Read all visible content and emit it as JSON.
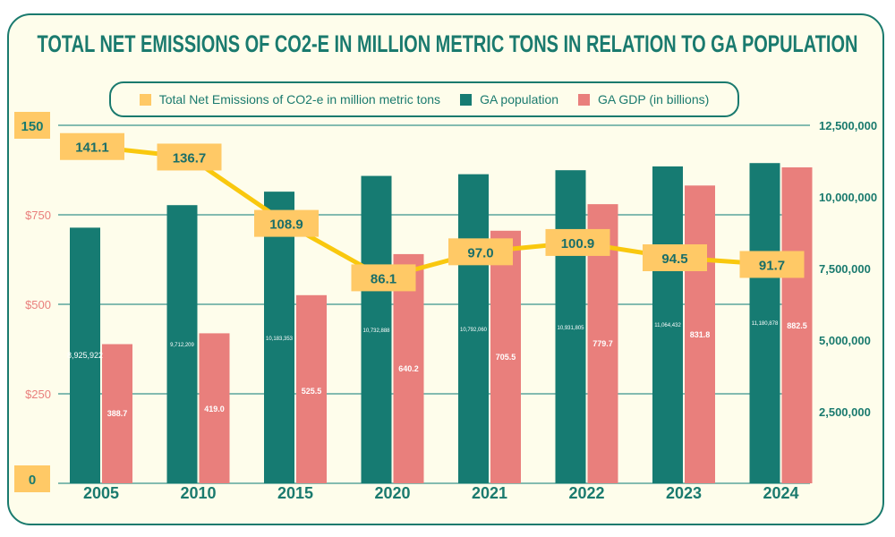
{
  "chart_data": {
    "type": "bar+line",
    "title": "Total Net Emissions of CO2-e in Million Metric Tons in Relation to GA Population",
    "categories": [
      "2005",
      "2010",
      "2015",
      "2020",
      "2021",
      "2022",
      "2023",
      "2024"
    ],
    "series": [
      {
        "name": "Total Net Emissions of CO2-e in million metric tons",
        "type": "line",
        "axis": "left-emissions",
        "color": "#FFC966",
        "line_color": "#F9C80E",
        "values": [
          141.1,
          136.7,
          108.9,
          86.1,
          97.0,
          100.9,
          94.5,
          91.7
        ],
        "labels": [
          "141.1",
          "136.7",
          "108.9",
          "86.1",
          "97.0",
          "100.9",
          "94.5",
          "91.7"
        ]
      },
      {
        "name": "GA population",
        "type": "bar",
        "axis": "right",
        "color": "#167B72",
        "values": [
          8925922,
          9712209,
          10183353,
          10732888,
          10792060,
          10931805,
          11064432,
          11180878
        ],
        "labels": [
          "8,925,922",
          "9,712,209",
          "10,183,353",
          "10,732,888",
          "10,792,060",
          "10,931,805",
          "11,064,432",
          "11,180,878"
        ]
      },
      {
        "name": "GA GDP (in billions)",
        "type": "bar",
        "axis": "left-gdp",
        "color": "#E97F7C",
        "values": [
          388.7,
          419.0,
          525.5,
          640.2,
          705.5,
          779.7,
          831.8,
          882.5
        ],
        "labels": [
          "388.7",
          "419.0",
          "525.5",
          "640.2",
          "705.5",
          "779.7",
          "831.8",
          "882.5"
        ]
      }
    ],
    "left_axis_emissions": {
      "range": [
        0,
        150
      ],
      "ticks": [
        "150",
        "0"
      ]
    },
    "left_axis_gdp": {
      "range": [
        0,
        1000
      ],
      "ticks": [
        "$750",
        "$500",
        "$250"
      ]
    },
    "right_axis": {
      "range": [
        0,
        12500000
      ],
      "ticks": [
        "12,500,000",
        "10,000,000",
        "7,500,000",
        "5,000,000",
        "2,500,000"
      ]
    },
    "grid": true,
    "legend_position": "top"
  }
}
